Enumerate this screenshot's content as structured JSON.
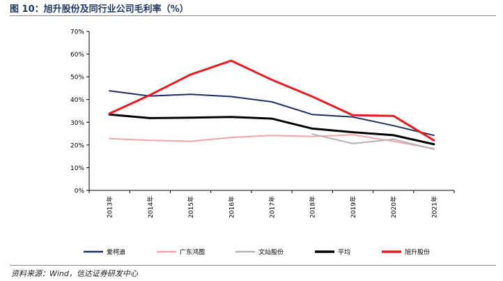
{
  "figure": {
    "title": "图 10：旭升股份及同行业公司毛利率（%）",
    "source": "资料来源：Wind，信达证券研发中心"
  },
  "chart_data": {
    "type": "line",
    "categories": [
      "2013年",
      "2014年",
      "2015年",
      "2016年",
      "2017年",
      "2018年",
      "2019年",
      "2020年",
      "2021年"
    ],
    "ylim": [
      0,
      70
    ],
    "yticks": [
      "0%",
      "10%",
      "20%",
      "30%",
      "40%",
      "50%",
      "60%",
      "70%"
    ],
    "grid": false,
    "legend": "bottom",
    "series": [
      {
        "name": "爱柯迪",
        "color": "#1f2d5c",
        "width": 2,
        "values": [
          43.8,
          41.5,
          42.3,
          41.3,
          39.0,
          33.4,
          32.3,
          28.5,
          24.2
        ]
      },
      {
        "name": "广东鸿图",
        "color": "#f2a5a5",
        "width": 2,
        "values": [
          22.8,
          22.0,
          21.6,
          23.3,
          24.2,
          23.7,
          24.5,
          21.6,
          18.4
        ]
      },
      {
        "name": "文灿股份",
        "color": "#b3b3b3",
        "width": 2,
        "values": [
          null,
          null,
          null,
          null,
          null,
          24.8,
          20.6,
          22.5,
          18.1
        ]
      },
      {
        "name": "平均",
        "color": "#000000",
        "width": 3,
        "values": [
          33.4,
          31.8,
          32.0,
          32.3,
          31.6,
          27.2,
          25.6,
          24.3,
          20.3
        ]
      },
      {
        "name": "旭升股份",
        "color": "#e51c23",
        "width": 3,
        "values": [
          33.8,
          42.0,
          51.0,
          57.1,
          48.7,
          41.3,
          33.1,
          32.8,
          22.0
        ]
      }
    ]
  }
}
